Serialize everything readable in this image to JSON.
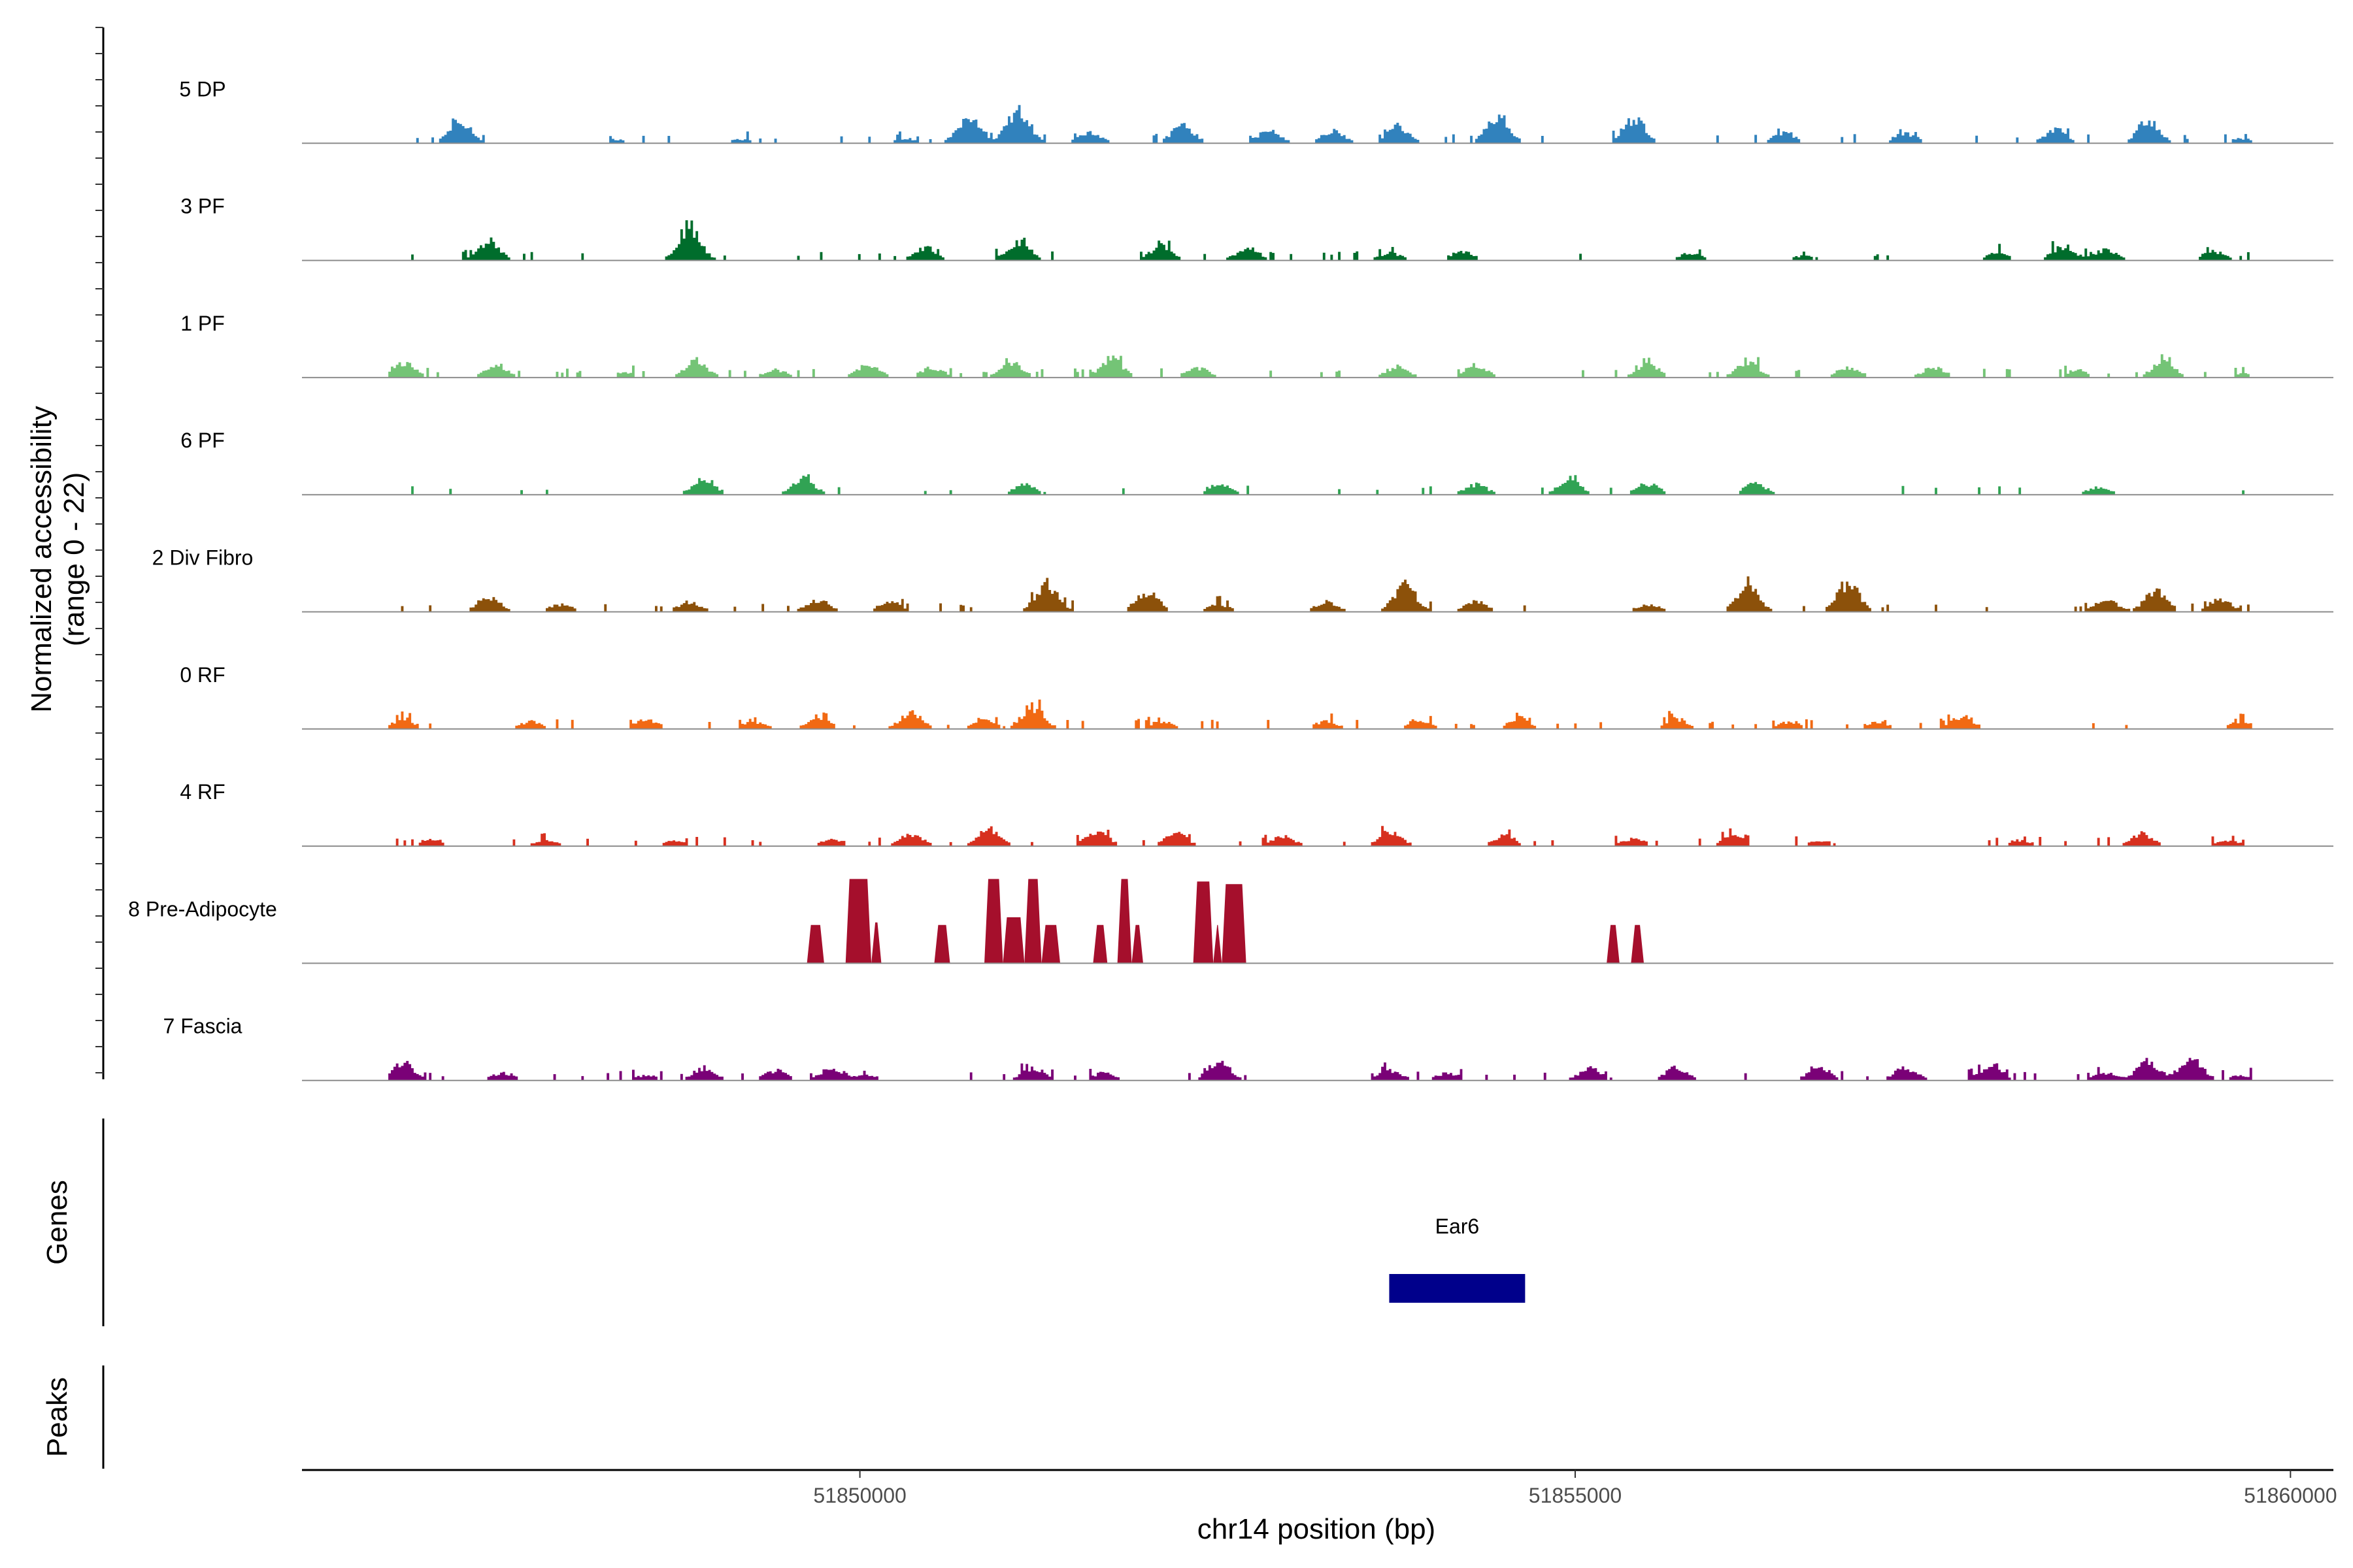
{
  "chart_data": {
    "type": "area",
    "title": "",
    "ylabel_line1": "Normalized accessibility",
    "ylabel_line2": "(range 0 - 22)",
    "ylim": [
      0,
      22
    ],
    "xlabel": "chr14 position (bp)",
    "xlim": [
      51846100,
      51860300
    ],
    "xticks": [
      51850000,
      51855000,
      51860000
    ],
    "xtick_labels": [
      "51850000",
      "51855000",
      "51860000"
    ],
    "genes_label": "Genes",
    "peaks_label": "Peaks",
    "genes": [
      {
        "name": "Ear6",
        "start": 51853700,
        "end": 51854650,
        "color": "#00008B"
      }
    ],
    "series": [
      {
        "name": "5 DP",
        "color": "#3182BD",
        "seed": 11,
        "density": 0.48,
        "peaks": [
          [
            51847200,
            4.5
          ],
          [
            51848300,
            0.8
          ],
          [
            51849150,
            0.8
          ],
          [
            51850300,
            1.0
          ],
          [
            51850750,
            5.0
          ],
          [
            51851100,
            6.5
          ],
          [
            51851600,
            2.0
          ],
          [
            51852250,
            3.5
          ],
          [
            51852850,
            2.5
          ],
          [
            51853300,
            2.5
          ],
          [
            51853750,
            3.2
          ],
          [
            51854450,
            5.5
          ],
          [
            51855400,
            4.8
          ],
          [
            51856450,
            2.0
          ],
          [
            51857300,
            2.0
          ],
          [
            51858350,
            2.8
          ],
          [
            51859000,
            4.5
          ],
          [
            51859650,
            1.0
          ]
        ]
      },
      {
        "name": "3 PF",
        "color": "#006D2C",
        "seed": 23,
        "density": 0.4,
        "peaks": [
          [
            51847400,
            3.8
          ],
          [
            51848800,
            6.8
          ],
          [
            51850450,
            2.5
          ],
          [
            51851100,
            3.8
          ],
          [
            51852100,
            3.0
          ],
          [
            51852700,
            2.5
          ],
          [
            51853700,
            1.5
          ],
          [
            51854200,
            1.8
          ],
          [
            51855800,
            1.5
          ],
          [
            51856600,
            1.0
          ],
          [
            51857950,
            1.5
          ],
          [
            51858400,
            2.8
          ],
          [
            51858700,
            2.2
          ],
          [
            51859450,
            1.8
          ]
        ]
      },
      {
        "name": "1 PF",
        "color": "#74C476",
        "seed": 37,
        "density": 0.55,
        "peaks": [
          [
            51846800,
            3.0
          ],
          [
            51847450,
            2.2
          ],
          [
            51848350,
            1.0
          ],
          [
            51848850,
            3.2
          ],
          [
            51849400,
            1.5
          ],
          [
            51850050,
            2.5
          ],
          [
            51850500,
            2.0
          ],
          [
            51851050,
            3.2
          ],
          [
            51851750,
            3.8
          ],
          [
            51852350,
            2.0
          ],
          [
            51853750,
            2.2
          ],
          [
            51854300,
            2.5
          ],
          [
            51855500,
            2.8
          ],
          [
            51856200,
            3.0
          ],
          [
            51856900,
            2.2
          ],
          [
            51857500,
            2.0
          ],
          [
            51858500,
            1.5
          ],
          [
            51859100,
            3.2
          ],
          [
            51859650,
            0.8
          ]
        ]
      },
      {
        "name": "6 PF",
        "color": "#31A354",
        "seed": 41,
        "density": 0.3,
        "peaks": [
          [
            51848900,
            3.2
          ],
          [
            51849600,
            3.2
          ],
          [
            51851150,
            2.0
          ],
          [
            51852500,
            2.2
          ],
          [
            51854300,
            2.0
          ],
          [
            51854950,
            3.2
          ],
          [
            51855500,
            2.2
          ],
          [
            51856250,
            2.2
          ],
          [
            51858650,
            1.5
          ]
        ]
      },
      {
        "name": "2 Div Fibro",
        "color": "#8C510A",
        "seed": 53,
        "density": 0.45,
        "peaks": [
          [
            51847400,
            3.0
          ],
          [
            51847900,
            1.5
          ],
          [
            51848800,
            2.0
          ],
          [
            51849700,
            2.5
          ],
          [
            51850200,
            2.0
          ],
          [
            51851300,
            5.5
          ],
          [
            51852000,
            4.0
          ],
          [
            51852500,
            1.5
          ],
          [
            51853250,
            2.0
          ],
          [
            51853800,
            5.5
          ],
          [
            51854300,
            2.0
          ],
          [
            51855500,
            1.5
          ],
          [
            51856200,
            5.0
          ],
          [
            51856900,
            5.5
          ],
          [
            51858700,
            2.5
          ],
          [
            51859050,
            4.2
          ],
          [
            51859500,
            2.5
          ]
        ]
      },
      {
        "name": "0 RF",
        "color": "#F16913",
        "seed": 67,
        "density": 0.6,
        "peaks": [
          [
            51846800,
            2.0
          ],
          [
            51847700,
            1.5
          ],
          [
            51848500,
            2.0
          ],
          [
            51849250,
            1.5
          ],
          [
            51849700,
            2.5
          ],
          [
            51850350,
            3.2
          ],
          [
            51850850,
            2.0
          ],
          [
            51851200,
            4.5
          ],
          [
            51852100,
            1.5
          ],
          [
            51853250,
            1.5
          ],
          [
            51853900,
            2.0
          ],
          [
            51854600,
            2.2
          ],
          [
            51855700,
            2.0
          ],
          [
            51856500,
            1.5
          ],
          [
            51857100,
            1.5
          ],
          [
            51857700,
            2.5
          ],
          [
            51859650,
            1.5
          ]
        ]
      },
      {
        "name": "4 RF",
        "color": "#D7301F",
        "seed": 79,
        "density": 0.55,
        "peaks": [
          [
            51847000,
            1.5
          ],
          [
            51847800,
            1.2
          ],
          [
            51848700,
            1.0
          ],
          [
            51849800,
            1.5
          ],
          [
            51850350,
            2.5
          ],
          [
            51850900,
            3.5
          ],
          [
            51851650,
            3.0
          ],
          [
            51852200,
            2.5
          ],
          [
            51852950,
            2.0
          ],
          [
            51853700,
            3.0
          ],
          [
            51854500,
            2.0
          ],
          [
            51855400,
            1.5
          ],
          [
            51856100,
            2.0
          ],
          [
            51856700,
            1.2
          ],
          [
            51858100,
            1.2
          ],
          [
            51858950,
            2.5
          ],
          [
            51859550,
            1.2
          ]
        ]
      },
      {
        "name": "8 Pre-Adipocyte",
        "color": "#A50F2C",
        "seed": 97,
        "density": 0.0,
        "blocks": [
          [
            51849630,
            51849750,
            7.5
          ],
          [
            51849900,
            51850080,
            16.5
          ],
          [
            51850080,
            51850150,
            8.0
          ],
          [
            51850520,
            51850630,
            7.5
          ],
          [
            51850870,
            51851000,
            16.5
          ],
          [
            51851000,
            51851150,
            9.0
          ],
          [
            51851150,
            51851270,
            16.5
          ],
          [
            51851270,
            51851400,
            7.5
          ],
          [
            51851630,
            51851730,
            7.5
          ],
          [
            51851800,
            51851900,
            16.5
          ],
          [
            51851900,
            51851980,
            7.5
          ],
          [
            51852330,
            51852470,
            16.0
          ],
          [
            51852470,
            51852530,
            7.5
          ],
          [
            51852530,
            51852700,
            15.5
          ],
          [
            51855220,
            51855310,
            7.5
          ],
          [
            51855390,
            51855480,
            7.5
          ]
        ]
      },
      {
        "name": "7 Fascia",
        "color": "#7A0177",
        "seed": 131,
        "density": 0.45,
        "peaks": [
          [
            51846800,
            3.5
          ],
          [
            51847500,
            1.5
          ],
          [
            51848500,
            1.0
          ],
          [
            51848900,
            2.5
          ],
          [
            51849400,
            2.0
          ],
          [
            51849800,
            2.5
          ],
          [
            51850050,
            1.0
          ],
          [
            51851200,
            2.5
          ],
          [
            51851700,
            1.5
          ],
          [
            51852500,
            3.5
          ],
          [
            51853700,
            2.0
          ],
          [
            51854100,
            1.5
          ],
          [
            51855100,
            2.5
          ],
          [
            51855700,
            2.5
          ],
          [
            51856700,
            2.5
          ],
          [
            51857300,
            2.5
          ],
          [
            51857900,
            3.0
          ],
          [
            51858700,
            1.5
          ],
          [
            51859000,
            3.8
          ],
          [
            51859300,
            4.5
          ],
          [
            51859650,
            1.0
          ]
        ]
      }
    ]
  }
}
